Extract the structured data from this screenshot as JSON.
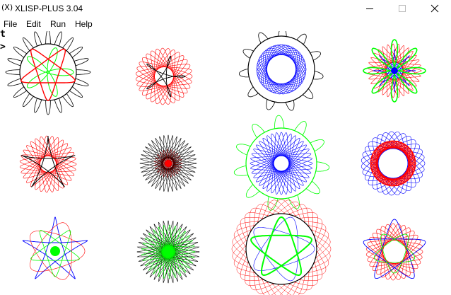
{
  "window": {
    "title": "XLISP-PLUS 3.04",
    "icon": "xlisp-x-icon"
  },
  "menu": [
    {
      "label": "File"
    },
    {
      "label": "Edit"
    },
    {
      "label": "Run"
    },
    {
      "label": "Help"
    }
  ],
  "console": {
    "prompt_char": "t",
    "caret_char": ">"
  },
  "colors": {
    "black": "#000000",
    "red": "#ff0000",
    "green": "#00ff00",
    "blue": "#0000ff"
  },
  "spirographs": [
    {
      "id": 1,
      "colors": [
        "black",
        "green",
        "red"
      ]
    },
    {
      "id": 2,
      "colors": [
        "red",
        "black"
      ]
    },
    {
      "id": 3,
      "colors": [
        "black",
        "blue"
      ]
    },
    {
      "id": 4,
      "colors": [
        "red",
        "blue",
        "green"
      ]
    },
    {
      "id": 5,
      "colors": [
        "red",
        "black"
      ]
    },
    {
      "id": 6,
      "colors": [
        "black",
        "red"
      ]
    },
    {
      "id": 7,
      "colors": [
        "green",
        "blue"
      ]
    },
    {
      "id": 8,
      "colors": [
        "blue",
        "red"
      ]
    },
    {
      "id": 9,
      "colors": [
        "blue",
        "red",
        "green"
      ]
    },
    {
      "id": 10,
      "colors": [
        "black",
        "green"
      ]
    },
    {
      "id": 11,
      "colors": [
        "red",
        "blue",
        "green"
      ]
    },
    {
      "id": 12,
      "colors": [
        "red",
        "blue",
        "green"
      ]
    }
  ]
}
